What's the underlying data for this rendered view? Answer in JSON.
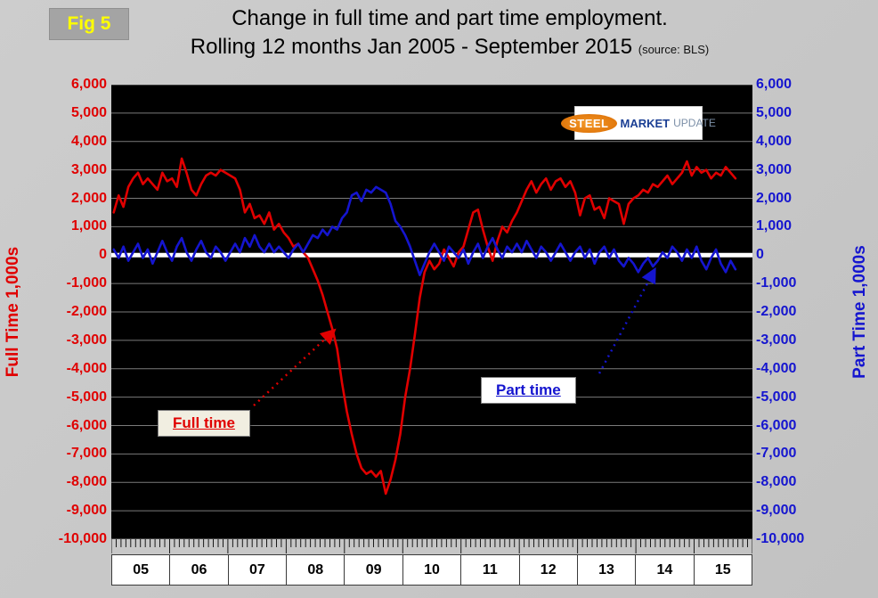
{
  "fig_label": "Fig 5",
  "title": {
    "line1": "Change in full time and part time employment.",
    "line2": "Rolling 12 months Jan 2005 - September 2015",
    "source": "(source: BLS)"
  },
  "logo": {
    "word1": "STEEL",
    "word2": "MARKET",
    "word3": "UPDATE"
  },
  "axes": {
    "left_title": "Full Time 1,000s",
    "right_title": "Part Time 1,000s",
    "tick_labels": [
      "6,000",
      "5,000",
      "4,000",
      "3,000",
      "2,000",
      "1,000",
      "0",
      "-1,000",
      "-2,000",
      "-3,000",
      "-4,000",
      "-5,000",
      "-6,000",
      "-7,000",
      "-8,000",
      "-9,000",
      "-10,000"
    ],
    "year_labels": [
      "05",
      "06",
      "07",
      "08",
      "09",
      "10",
      "11",
      "12",
      "13",
      "14",
      "15"
    ]
  },
  "annotations": {
    "full_time": "Full time",
    "part_time": "Part time"
  },
  "colors": {
    "full_time": "#e00000",
    "part_time": "#1515cf",
    "plot_bg": "#000000",
    "grid": "#7a7a7a",
    "zero_line": "#ffffff",
    "fig_text": "#ffff00"
  },
  "chart_data": {
    "type": "line",
    "title": "Change in full time and part time employment. Rolling 12 months Jan 2005 - September 2015",
    "source": "BLS",
    "x_unit": "month",
    "x_start": "2005-01",
    "x_end": "2015-09",
    "ylim": [
      -10000,
      6000
    ],
    "y_tick_step": 1000,
    "grid": true,
    "plot_background": "black",
    "series": [
      {
        "name": "Full time",
        "color": "#e00000",
        "values": [
          1500,
          2100,
          1700,
          2400,
          2700,
          2900,
          2500,
          2700,
          2500,
          2300,
          2900,
          2600,
          2700,
          2400,
          3400,
          2900,
          2300,
          2100,
          2500,
          2800,
          2900,
          2800,
          3000,
          2900,
          2800,
          2700,
          2300,
          1500,
          1800,
          1300,
          1400,
          1100,
          1500,
          900,
          1100,
          800,
          600,
          300,
          400,
          100,
          -100,
          -500,
          -900,
          -1400,
          -2000,
          -2600,
          -3300,
          -4500,
          -5500,
          -6300,
          -7000,
          -7500,
          -7700,
          -7600,
          -7800,
          -7600,
          -8400,
          -7900,
          -7200,
          -6300,
          -5000,
          -4000,
          -2800,
          -1500,
          -600,
          -200,
          -500,
          -300,
          200,
          -100,
          -400,
          100,
          300,
          900,
          1500,
          1600,
          900,
          300,
          -200,
          500,
          1000,
          800,
          1200,
          1500,
          1900,
          2300,
          2600,
          2200,
          2500,
          2700,
          2300,
          2600,
          2700,
          2400,
          2600,
          2200,
          1400,
          2000,
          2100,
          1600,
          1700,
          1300,
          2000,
          1900,
          1800,
          1100,
          1800,
          2000,
          2100,
          2300,
          2200,
          2500,
          2400,
          2600,
          2800,
          2500,
          2700,
          2900,
          3300,
          2800,
          3100,
          2900,
          3000,
          2700,
          2900,
          2800,
          3100,
          2900,
          2700
        ]
      },
      {
        "name": "Part time",
        "color": "#1515cf",
        "values": [
          200,
          -100,
          300,
          -200,
          100,
          400,
          -100,
          200,
          -300,
          100,
          500,
          100,
          -200,
          300,
          600,
          100,
          -200,
          200,
          500,
          100,
          -100,
          300,
          100,
          -200,
          100,
          400,
          100,
          600,
          300,
          700,
          300,
          100,
          400,
          100,
          300,
          100,
          -100,
          200,
          400,
          100,
          400,
          700,
          600,
          900,
          700,
          1000,
          900,
          1300,
          1500,
          2100,
          2200,
          1900,
          2300,
          2200,
          2400,
          2300,
          2200,
          1800,
          1200,
          1000,
          700,
          300,
          -200,
          -700,
          -300,
          100,
          400,
          100,
          -200,
          300,
          100,
          -100,
          200,
          -300,
          100,
          400,
          -100,
          300,
          600,
          200,
          -100,
          300,
          100,
          400,
          100,
          500,
          200,
          -100,
          300,
          100,
          -200,
          100,
          400,
          100,
          -200,
          100,
          300,
          -100,
          200,
          -300,
          100,
          300,
          -100,
          200,
          -200,
          -400,
          -100,
          -300,
          -600,
          -300,
          -100,
          -400,
          -200,
          100,
          -100,
          300,
          100,
          -200,
          200,
          -100,
          300,
          -200,
          -500,
          -100,
          200,
          -300,
          -600,
          -200,
          -500
        ]
      }
    ]
  }
}
